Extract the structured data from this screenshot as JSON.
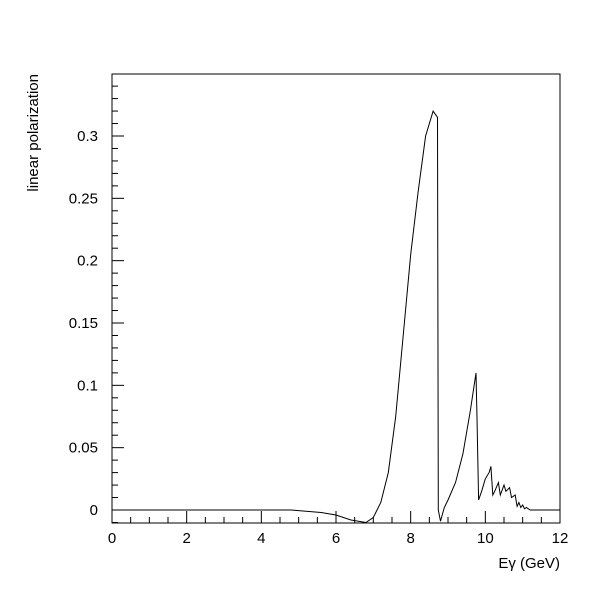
{
  "chart_data": {
    "type": "line",
    "title": "",
    "xlabel": "Eγ (GeV)",
    "ylabel": "linear polarization",
    "xlim": [
      0,
      12
    ],
    "ylim": [
      -0.01,
      0.35
    ],
    "grid": false,
    "x_ticks": [
      0,
      2,
      4,
      6,
      8,
      10,
      12
    ],
    "x_tick_labels": [
      "0",
      "2",
      "4",
      "6",
      "8",
      "10",
      "12"
    ],
    "y_ticks": [
      0,
      0.05,
      0.1,
      0.15,
      0.2,
      0.25,
      0.3
    ],
    "y_tick_labels": [
      "0",
      "0.05",
      "0.1",
      "0.15",
      "0.2",
      "0.25",
      "0.3"
    ],
    "colors": {
      "line": "#000000",
      "frame": "#000000",
      "background": "#ffffff"
    },
    "series": [
      {
        "x": [
          0,
          4.0,
          4.8,
          5.2,
          5.6,
          6.0,
          6.4,
          6.8,
          7.0,
          7.2,
          7.4,
          7.6,
          7.8,
          8.0,
          8.2,
          8.4,
          8.6,
          8.72,
          8.74,
          8.8,
          8.9,
          9.0,
          9.2,
          9.4,
          9.6,
          9.75,
          9.78,
          9.82,
          9.9,
          10.0,
          10.1,
          10.15,
          10.2,
          10.25,
          10.35,
          10.4,
          10.5,
          10.55,
          10.65,
          10.7,
          10.8,
          10.85,
          10.9,
          10.95,
          11.0,
          11.05,
          11.1,
          11.2,
          11.5,
          12.0
        ],
        "y": [
          0,
          0,
          0,
          -0.001,
          -0.002,
          -0.004,
          -0.008,
          -0.01,
          -0.006,
          0.006,
          0.03,
          0.075,
          0.14,
          0.205,
          0.255,
          0.3,
          0.32,
          0.315,
          0.0,
          -0.009,
          0.002,
          0.008,
          0.022,
          0.045,
          0.08,
          0.11,
          0.07,
          0.008,
          0.015,
          0.025,
          0.03,
          0.035,
          0.012,
          0.015,
          0.022,
          0.012,
          0.02,
          0.015,
          0.018,
          0.01,
          0.012,
          0.003,
          0.006,
          0.002,
          0.004,
          0.001,
          0.002,
          0,
          0,
          0
        ]
      }
    ]
  }
}
